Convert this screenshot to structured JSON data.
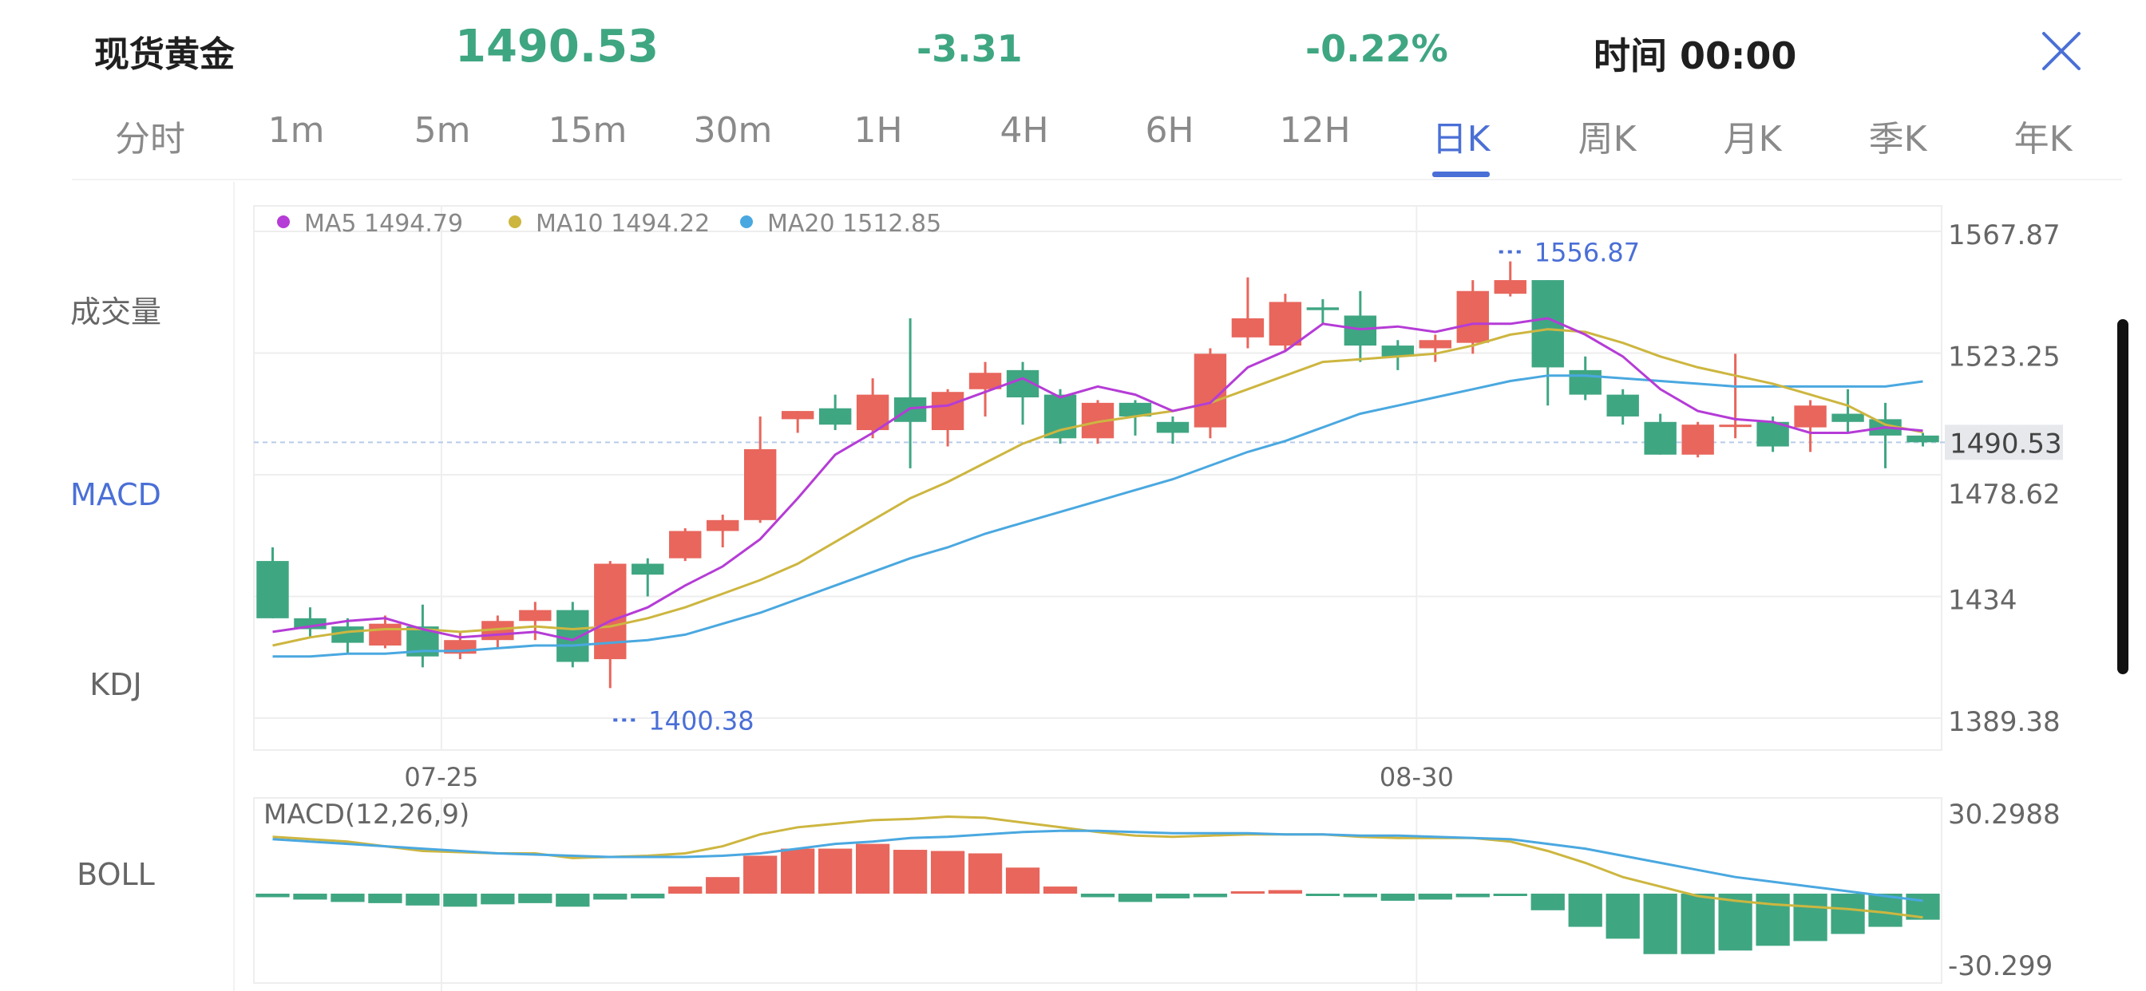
{
  "header": {
    "title": "现货黄金",
    "price": "1490.53",
    "change": "-3.31",
    "change_pct": "-0.22%",
    "time_label": "时间 00:00",
    "close_icon": "close-icon",
    "up_color": "#e8665c",
    "down_color": "#3fa682"
  },
  "tabs": [
    {
      "label": "分时"
    },
    {
      "label": "1m"
    },
    {
      "label": "5m"
    },
    {
      "label": "15m"
    },
    {
      "label": "30m"
    },
    {
      "label": "1H"
    },
    {
      "label": "4H"
    },
    {
      "label": "6H"
    },
    {
      "label": "12H"
    },
    {
      "label": "日K",
      "active": true
    },
    {
      "label": "周K"
    },
    {
      "label": "月K"
    },
    {
      "label": "季K"
    },
    {
      "label": "年K"
    }
  ],
  "side_menu": [
    {
      "label": "成交量"
    },
    {
      "label": "MACD",
      "active": true
    },
    {
      "label": "KDJ"
    },
    {
      "label": "BOLL"
    }
  ],
  "chart_data": [
    {
      "type": "candlestick",
      "legend": [
        {
          "name": "MA5 1494.79",
          "color": "#b53cd6"
        },
        {
          "name": "MA10 1494.22",
          "color": "#cdb640"
        },
        {
          "name": "MA20 1512.85",
          "color": "#4aa8e0"
        }
      ],
      "y_ticks": [
        "1567.87",
        "1523.25",
        "1478.62",
        "1434",
        "1389.38"
      ],
      "ylim": [
        1389.38,
        1567.87
      ],
      "x_ticks": [
        {
          "index": 4.5,
          "label": "07-25"
        },
        {
          "index": 30.5,
          "label": "08-30"
        }
      ],
      "current_price": {
        "value": 1490.53,
        "label": "1490.53"
      },
      "high_marker": {
        "index": 33,
        "value": 1556.87,
        "label": "1556.87"
      },
      "low_marker": {
        "index": 9,
        "value": 1400.38,
        "label": "1400.38"
      },
      "candles": [
        [
          1447,
          1426,
          1452,
          1426
        ],
        [
          1426,
          1422,
          1430,
          1419
        ],
        [
          1423,
          1417,
          1426,
          1413
        ],
        [
          1416,
          1424,
          1427,
          1415
        ],
        [
          1423,
          1412,
          1431,
          1408
        ],
        [
          1413,
          1418,
          1421,
          1411
        ],
        [
          1418,
          1425,
          1427,
          1415
        ],
        [
          1425,
          1429,
          1432,
          1418
        ],
        [
          1429,
          1410,
          1432,
          1408
        ],
        [
          1411,
          1446,
          1447,
          1400.38
        ],
        [
          1446,
          1442,
          1448,
          1434
        ],
        [
          1448,
          1458,
          1459,
          1447
        ],
        [
          1458,
          1462,
          1464,
          1452
        ],
        [
          1462,
          1488,
          1500,
          1461
        ],
        [
          1499,
          1502,
          1502,
          1494
        ],
        [
          1503,
          1497,
          1508,
          1495
        ],
        [
          1495,
          1508,
          1514,
          1492
        ],
        [
          1507,
          1498,
          1536,
          1481
        ],
        [
          1495,
          1509,
          1510,
          1489
        ],
        [
          1510,
          1516,
          1520,
          1500
        ],
        [
          1517,
          1507,
          1520,
          1497
        ],
        [
          1508,
          1492,
          1510,
          1490
        ],
        [
          1492,
          1505,
          1506,
          1490
        ],
        [
          1505,
          1500,
          1506,
          1493
        ],
        [
          1498,
          1494,
          1500,
          1490
        ],
        [
          1496,
          1523,
          1525,
          1492
        ],
        [
          1529,
          1536,
          1551,
          1525
        ],
        [
          1526,
          1542,
          1545,
          1524
        ],
        [
          1540,
          1539,
          1543,
          1534
        ],
        [
          1537,
          1526,
          1546,
          1520
        ],
        [
          1526,
          1522,
          1528,
          1517
        ],
        [
          1525,
          1528,
          1530,
          1520
        ],
        [
          1527,
          1546,
          1550,
          1523
        ],
        [
          1545,
          1550,
          1556.87,
          1544
        ],
        [
          1550,
          1518,
          1550,
          1504
        ],
        [
          1517,
          1508,
          1522,
          1506
        ],
        [
          1508,
          1500,
          1510,
          1497
        ],
        [
          1498,
          1486,
          1501,
          1486
        ],
        [
          1486,
          1497,
          1498,
          1485
        ],
        [
          1497,
          1497,
          1523,
          1492
        ],
        [
          1498,
          1489,
          1500,
          1487
        ],
        [
          1496,
          1504,
          1506,
          1487
        ],
        [
          1501,
          1498,
          1510,
          1494
        ],
        [
          1499,
          1493,
          1505,
          1481
        ],
        [
          1493,
          1490.53,
          1494,
          1489
        ]
      ],
      "ma5": [
        1421,
        1423,
        1425,
        1426,
        1422,
        1419,
        1420,
        1421,
        1418,
        1425,
        1430,
        1438,
        1445,
        1455,
        1470,
        1486,
        1494,
        1503,
        1504,
        1509,
        1514,
        1507,
        1511,
        1508,
        1502,
        1505,
        1518,
        1524,
        1534,
        1532,
        1533,
        1531,
        1534,
        1534,
        1536,
        1530,
        1522,
        1510,
        1502,
        1499,
        1498,
        1494,
        1494,
        1496,
        1494.79
      ],
      "ma10": [
        1416,
        1419,
        1421,
        1422,
        1422,
        1421,
        1422,
        1423,
        1422,
        1423,
        1426,
        1430,
        1435,
        1440,
        1446,
        1454,
        1462,
        1470,
        1476,
        1483,
        1490,
        1495,
        1498,
        1500,
        1502,
        1505,
        1510,
        1515,
        1520,
        1521,
        1522,
        1523,
        1526,
        1530,
        1532,
        1531,
        1527,
        1522,
        1518,
        1515,
        1512,
        1508,
        1504,
        1497,
        1494.22
      ],
      "ma20": [
        1412,
        1412,
        1413,
        1413,
        1414,
        1414,
        1415,
        1416,
        1416,
        1417,
        1418,
        1420,
        1424,
        1428,
        1433,
        1438,
        1443,
        1448,
        1452,
        1457,
        1461,
        1465,
        1469,
        1473,
        1477,
        1482,
        1487,
        1491,
        1496,
        1501,
        1504,
        1507,
        1510,
        1513,
        1515,
        1515,
        1514,
        1513,
        1512,
        1511,
        1511,
        1511,
        1511,
        1511,
        1512.85
      ]
    },
    {
      "type": "bar",
      "title": "MACD(12,26,9)",
      "y_ticks": [
        "30.2988",
        "-30.299"
      ],
      "ylim": [
        -30.299,
        30.2988
      ],
      "histogram": [
        -1.5,
        -2.5,
        -3.5,
        -4,
        -5,
        -5.5,
        -4.5,
        -4,
        -5.5,
        -2.5,
        -2,
        3,
        7,
        16,
        19,
        19,
        21,
        18.5,
        18,
        17,
        11,
        3,
        -1.5,
        -3.5,
        -2,
        -1.5,
        1,
        1.5,
        -1,
        -1.5,
        -3,
        -2.5,
        -1.5,
        -0.5,
        -7,
        -14,
        -19,
        -25.5,
        -25.5,
        -24,
        -22,
        -20,
        -17,
        -14,
        -11
      ],
      "dif": [
        23,
        22,
        21,
        20,
        19,
        18,
        17,
        16.5,
        16,
        15.5,
        15.5,
        15.5,
        16,
        17,
        19,
        21,
        22,
        23.5,
        24,
        25,
        26,
        26.5,
        26.5,
        26,
        25.5,
        25.5,
        25.5,
        25,
        25,
        24.5,
        24.5,
        24,
        23.5,
        23,
        21,
        19,
        16,
        13,
        10,
        7,
        5,
        3,
        1,
        -1,
        -3
      ],
      "dea": [
        24,
        23,
        22,
        20,
        18,
        17.5,
        17,
        17,
        15,
        15.5,
        16,
        17,
        20,
        25,
        28,
        29.5,
        31,
        31.5,
        32.5,
        32,
        30,
        28,
        26,
        24.5,
        24,
        24.5,
        25,
        25,
        25,
        24,
        23.5,
        23.5,
        23.5,
        22,
        18,
        13,
        7,
        3,
        -1,
        -3,
        -4.5,
        -5.5,
        -6.5,
        -8,
        -10
      ]
    }
  ]
}
